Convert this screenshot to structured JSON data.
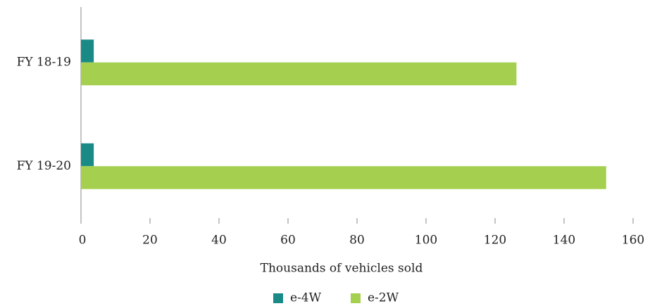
{
  "chart_data": {
    "type": "bar",
    "orientation": "horizontal",
    "categories": [
      "FY 18-19",
      "FY 19-20"
    ],
    "series": [
      {
        "name": "e-4W",
        "color": "#1a8a87",
        "values": [
          3.7,
          3.7
        ]
      },
      {
        "name": "e-2W",
        "color": "#a4cf4f",
        "values": [
          126.2,
          152.2
        ]
      }
    ],
    "xlabel": "Thousands of vehicles sold",
    "xlim": [
      0,
      170
    ],
    "xticks": [
      0,
      20,
      40,
      60,
      80,
      100,
      120,
      140,
      160
    ],
    "legend": "bottom"
  }
}
